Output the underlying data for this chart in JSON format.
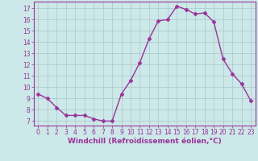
{
  "x": [
    0,
    1,
    2,
    3,
    4,
    5,
    6,
    7,
    8,
    9,
    10,
    11,
    12,
    13,
    14,
    15,
    16,
    17,
    18,
    19,
    20,
    21,
    22,
    23
  ],
  "y": [
    9.4,
    9.0,
    8.2,
    7.5,
    7.5,
    7.5,
    7.2,
    7.0,
    7.0,
    9.4,
    10.6,
    12.2,
    14.3,
    15.9,
    16.0,
    17.2,
    16.9,
    16.5,
    16.6,
    15.8,
    12.5,
    11.2,
    10.3,
    8.8
  ],
  "line_color": "#993399",
  "marker": "D",
  "marker_size": 2.5,
  "background_color": "#cce8e8",
  "grid_color": "#aac8c8",
  "xlabel": "Windchill (Refroidissement éolien,°C)",
  "xlabel_fontsize": 6.5,
  "ylabel_ticks": [
    7,
    8,
    9,
    10,
    11,
    12,
    13,
    14,
    15,
    16,
    17
  ],
  "xlim": [
    -0.5,
    23.5
  ],
  "ylim": [
    6.6,
    17.6
  ],
  "xtick_labels": [
    "0",
    "1",
    "2",
    "3",
    "4",
    "5",
    "6",
    "7",
    "8",
    "9",
    "10",
    "11",
    "12",
    "13",
    "14",
    "15",
    "16",
    "17",
    "18",
    "19",
    "20",
    "21",
    "22",
    "23"
  ],
  "tick_fontsize": 5.5,
  "spine_color": "#993399",
  "linewidth": 1.0
}
